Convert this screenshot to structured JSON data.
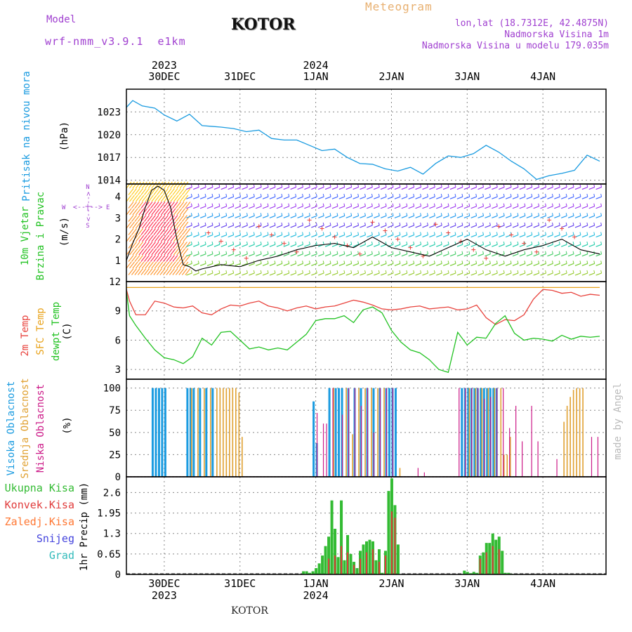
{
  "header": {
    "model_label": "Model",
    "model_name": "wrf-nmm_v3.9.1  e1km",
    "title": "KOTOR",
    "meteogram_label": "Meteogram",
    "coords": "lon,lat (18.7312E, 42.4875N)",
    "elevation": "Nadmorska Visina 1m",
    "model_elevation": "Nadmorska Visina u modelu 179.035m",
    "footer_title": "KOTOR",
    "watermark": "made by Angel"
  },
  "colors": {
    "pressure": "#1a9be0",
    "temp2m": "#e8423c",
    "sfc_temp": "#e8a21a",
    "dewpt": "#22c222",
    "high_cloud": "#1a9be0",
    "mid_cloud": "#e0a030",
    "low_cloud": "#cc1a88",
    "total_precip": "#33bb33",
    "conv_precip": "#e03c3c",
    "frozen_precip": "#ff7733",
    "snow": "#4444dd",
    "hail": "#33bbbb",
    "header_purple": "#a040d0",
    "meteogram_orange": "#e8b070",
    "wind_line": "#000000",
    "wind_cross": "#e8423c"
  },
  "time_axis": {
    "top_years": [
      {
        "year": "2023",
        "day": "30DEC"
      },
      {
        "year": "",
        "day": "31DEC"
      },
      {
        "year": "2024",
        "day": "1JAN"
      },
      {
        "year": "",
        "day": "2JAN"
      },
      {
        "year": "",
        "day": "3JAN"
      },
      {
        "year": "",
        "day": "4JAN"
      }
    ],
    "bottom_labels": [
      {
        "day": "30DEC",
        "year": "2023"
      },
      {
        "day": "31DEC",
        "year": ""
      },
      {
        "day": "1JAN",
        "year": "2024"
      },
      {
        "day": "2JAN",
        "year": ""
      },
      {
        "day": "3JAN",
        "year": ""
      },
      {
        "day": "4JAN",
        "year": ""
      }
    ],
    "day_hours": [
      12,
      36,
      60,
      84,
      108,
      132
    ]
  },
  "panels": {
    "pressure": {
      "label": "Pritisak na nivou mora",
      "unit": "(hPa)"
    },
    "wind": {
      "label1": "10m Vjetar",
      "label2": "Brzina i Pravac",
      "unit": "(m/s)",
      "compass_n": "N",
      "compass_s": "S",
      "compass_w": "W",
      "compass_e": "E",
      "arrow_v": "<--|-->",
      "arrow_h": "<--|-->"
    },
    "temp": {
      "label_2m": "2m Temp",
      "label_sfc": "SFC Temp",
      "label_dew": "dewpt Temp",
      "unit": "(C)"
    },
    "cloud": {
      "label_high": "Visoka Oblacnost",
      "label_mid": "Srednja Oblacnost",
      "label_low": "Niska Oblacnost",
      "unit": "(%)"
    },
    "precip": {
      "labels": [
        "Ukupna Kisa",
        "Konvek.Kisa",
        "Zaledj.Kisa",
        "Snijeg",
        "Grad"
      ],
      "unit": "1hr Precip (mm)"
    }
  },
  "chart_data": [
    {
      "type": "line",
      "name": "pressure",
      "ylim": [
        1013.5,
        1026
      ],
      "yticks": [
        "1014",
        "1017",
        "1020",
        "1023"
      ],
      "x": [
        0,
        2,
        5,
        9,
        12,
        16,
        20,
        24,
        27,
        30,
        34,
        38,
        42,
        46,
        50,
        54,
        58,
        62,
        66,
        70,
        74,
        78,
        82,
        86,
        90,
        94,
        98,
        102,
        106,
        110,
        114,
        118,
        122,
        126,
        130,
        134,
        138,
        142,
        146,
        150
      ],
      "series": [
        {
          "values": [
            1023.6,
            1024.5,
            1023.8,
            1023.5,
            1022.6,
            1021.8,
            1022.7,
            1021.2,
            1021.1,
            1021.0,
            1020.8,
            1020.4,
            1020.6,
            1019.5,
            1019.3,
            1019.3,
            1018.6,
            1017.9,
            1018.1,
            1017.0,
            1016.2,
            1016.1,
            1015.5,
            1015.2,
            1015.7,
            1014.8,
            1016.2,
            1017.2,
            1017.0,
            1017.5,
            1018.6,
            1017.7,
            1016.5,
            1015.5,
            1014.1,
            1014.6,
            1014.9,
            1015.3,
            1017.3,
            1016.5
          ]
        }
      ]
    },
    {
      "type": "line",
      "name": "wind",
      "ylim": [
        0,
        4.6
      ],
      "yticks": [
        "1",
        "2",
        "3",
        "4"
      ],
      "x": [
        0,
        2,
        4,
        6,
        8,
        10,
        12,
        14,
        16,
        18,
        20,
        22,
        24,
        30,
        36,
        42,
        48,
        54,
        60,
        66,
        72,
        78,
        84,
        90,
        96,
        102,
        108,
        114,
        120,
        126,
        132,
        138,
        144,
        150
      ],
      "series": [
        {
          "values": [
            1.0,
            1.8,
            2.5,
            3.5,
            4.3,
            4.5,
            4.3,
            3.5,
            2.0,
            0.8,
            0.7,
            0.5,
            0.6,
            0.8,
            0.7,
            1.0,
            1.2,
            1.5,
            1.7,
            1.8,
            1.6,
            2.1,
            1.6,
            1.4,
            1.2,
            1.6,
            2.0,
            1.5,
            1.2,
            1.5,
            1.7,
            2.0,
            1.5,
            1.3
          ]
        }
      ]
    },
    {
      "type": "line",
      "name": "temperature",
      "ylim": [
        2,
        12
      ],
      "yticks": [
        "3",
        "6",
        "9",
        "12"
      ],
      "x": [
        0,
        1,
        3,
        6,
        9,
        12,
        15,
        18,
        21,
        24,
        27,
        30,
        33,
        36,
        39,
        42,
        45,
        48,
        51,
        54,
        57,
        60,
        63,
        66,
        69,
        72,
        75,
        78,
        81,
        84,
        87,
        90,
        93,
        96,
        99,
        102,
        105,
        108,
        111,
        114,
        117,
        120,
        123,
        126,
        129,
        132,
        135,
        138,
        141,
        144,
        147,
        150
      ],
      "series": [
        {
          "name": "2m Temp",
          "values": [
            11.2,
            10.0,
            8.6,
            8.6,
            10.0,
            9.8,
            9.4,
            9.3,
            9.5,
            8.8,
            8.6,
            9.2,
            9.6,
            9.5,
            9.8,
            10.0,
            9.5,
            9.3,
            9.0,
            9.3,
            9.5,
            9.2,
            9.4,
            9.5,
            9.8,
            10.1,
            9.9,
            9.6,
            9.2,
            9.1,
            9.2,
            9.4,
            9.5,
            9.2,
            9.3,
            9.4,
            9.1,
            9.2,
            9.6,
            8.3,
            7.6,
            8.1,
            8.0,
            8.6,
            10.2,
            11.2,
            11.1,
            10.8,
            10.9,
            10.5,
            10.7,
            10.6
          ]
        },
        {
          "name": "SFC Temp",
          "values": [
            11.4,
            11.4,
            11.4,
            11.4,
            11.4,
            11.4,
            11.4,
            11.4,
            11.4,
            11.4,
            11.4,
            11.4,
            11.4,
            11.4,
            11.4,
            11.4,
            11.4,
            11.4,
            11.4,
            11.4,
            11.4,
            11.4,
            11.4,
            11.4,
            11.4,
            11.4,
            11.4,
            11.4,
            11.4,
            11.4,
            11.4,
            11.4,
            11.4,
            11.4,
            11.4,
            11.4,
            11.4,
            11.4,
            11.4,
            11.4,
            11.4,
            11.4,
            11.4,
            11.4,
            11.4,
            11.4,
            11.4,
            11.4,
            11.4,
            11.4,
            11.4,
            11.4
          ]
        },
        {
          "name": "dewpt Temp",
          "values": [
            11.0,
            8.5,
            7.5,
            6.2,
            5.0,
            4.2,
            4.0,
            3.6,
            4.3,
            6.2,
            5.5,
            6.8,
            6.9,
            6.0,
            5.1,
            5.3,
            5.0,
            5.2,
            5.0,
            5.8,
            6.6,
            8.0,
            8.2,
            8.2,
            8.5,
            7.8,
            9.1,
            9.4,
            8.8,
            7.0,
            5.8,
            5.0,
            4.7,
            4.0,
            3.0,
            2.7,
            6.8,
            5.5,
            6.3,
            6.2,
            7.7,
            8.5,
            6.7,
            6.0,
            6.2,
            6.1,
            5.9,
            6.5,
            6.1,
            6.4,
            6.3,
            6.4
          ]
        }
      ]
    },
    {
      "type": "bar",
      "name": "cloud",
      "ylim": [
        0,
        110
      ],
      "yticks": [
        "0",
        "25",
        "50",
        "75",
        "100"
      ],
      "series": [
        {
          "name": "Visoka Oblacnost",
          "x": [
            8,
            9,
            10,
            11,
            12,
            19,
            20,
            21,
            23,
            25,
            27,
            59,
            60,
            64,
            66,
            67,
            68,
            70,
            72,
            74,
            76,
            78,
            80,
            82,
            83,
            84,
            85,
            106,
            107,
            108,
            109,
            110,
            111,
            112,
            113,
            114,
            115,
            116,
            117
          ],
          "values": [
            100,
            100,
            100,
            100,
            100,
            100,
            100,
            100,
            100,
            100,
            100,
            85,
            38,
            100,
            100,
            100,
            100,
            100,
            100,
            100,
            100,
            100,
            100,
            100,
            100,
            100,
            100,
            100,
            100,
            100,
            100,
            100,
            100,
            100,
            100,
            100,
            100,
            100,
            100
          ]
        },
        {
          "name": "Srednja Oblacnost",
          "x": [
            20,
            22,
            24,
            26,
            28,
            29,
            30,
            31,
            32,
            33,
            34,
            35,
            36,
            65,
            69,
            71,
            73,
            75,
            77,
            79,
            81,
            86,
            108,
            110,
            112,
            114,
            116,
            118,
            119,
            120,
            121,
            138,
            139,
            140,
            141,
            142,
            143,
            144
          ],
          "values": [
            100,
            100,
            100,
            100,
            100,
            100,
            100,
            100,
            100,
            100,
            100,
            95,
            45,
            100,
            100,
            48,
            100,
            100,
            100,
            100,
            100,
            10,
            100,
            100,
            100,
            100,
            100,
            100,
            25,
            25,
            45,
            62,
            80,
            90,
            98,
            100,
            100,
            100
          ]
        },
        {
          "name": "Niska Oblacnost",
          "x": [
            60,
            62,
            63,
            65,
            68,
            70,
            72,
            74,
            76,
            78,
            80,
            82,
            84,
            92,
            94,
            105,
            107,
            109,
            111,
            113,
            115,
            117,
            119,
            121,
            123,
            125,
            128,
            130,
            136,
            147,
            149
          ],
          "values": [
            72,
            60,
            60,
            100,
            70,
            100,
            100,
            80,
            100,
            50,
            100,
            100,
            100,
            10,
            5,
            100,
            100,
            100,
            100,
            88,
            90,
            100,
            100,
            55,
            80,
            40,
            80,
            40,
            20,
            45,
            45
          ]
        }
      ]
    },
    {
      "type": "bar",
      "name": "precip",
      "ylim": [
        0,
        3.1
      ],
      "yticks": [
        "0",
        "0.65",
        "1.3",
        "1.95",
        "2.6"
      ],
      "series": [
        {
          "name": "Ukupna Kisa",
          "x": [
            56,
            57,
            58,
            59,
            60,
            61,
            62,
            63,
            64,
            65,
            66,
            67,
            68,
            69,
            70,
            71,
            72,
            73,
            74,
            75,
            76,
            77,
            78,
            79,
            80,
            81,
            82,
            83,
            84,
            85,
            86,
            107,
            108,
            109,
            110,
            111,
            112,
            113,
            114,
            115,
            116,
            117,
            118,
            119,
            120,
            121,
            122
          ],
          "values": [
            0.1,
            0.1,
            0.05,
            0.1,
            0.2,
            0.35,
            0.6,
            0.9,
            1.2,
            2.35,
            1.45,
            0.55,
            2.35,
            0.45,
            1.25,
            0.65,
            0.4,
            0.2,
            0.75,
            0.95,
            1.05,
            1.1,
            1.05,
            0.45,
            0.8,
            0.05,
            0.75,
            2.65,
            3.05,
            2.2,
            0.95,
            0.12,
            0.08,
            0.04,
            0.08,
            0.05,
            0.6,
            0.7,
            1.0,
            1.0,
            1.3,
            1.1,
            1.2,
            0.75,
            0.05,
            0.05,
            0.02
          ]
        },
        {
          "name": "Konvek.Kisa",
          "x": [
            64,
            66,
            68,
            70,
            72,
            74,
            76,
            78,
            80,
            82,
            84,
            85,
            112,
            114,
            116,
            118
          ],
          "values": [
            0.5,
            0.6,
            0.9,
            0.7,
            0.3,
            0.5,
            0.7,
            0.8,
            0.4,
            0.6,
            2.0,
            1.8,
            0.5,
            0.7,
            0.9,
            0.8
          ]
        },
        {
          "name": "Zaledj.Kisa",
          "values": []
        },
        {
          "name": "Snijeg",
          "values": []
        },
        {
          "name": "Grad",
          "values": []
        }
      ]
    }
  ]
}
